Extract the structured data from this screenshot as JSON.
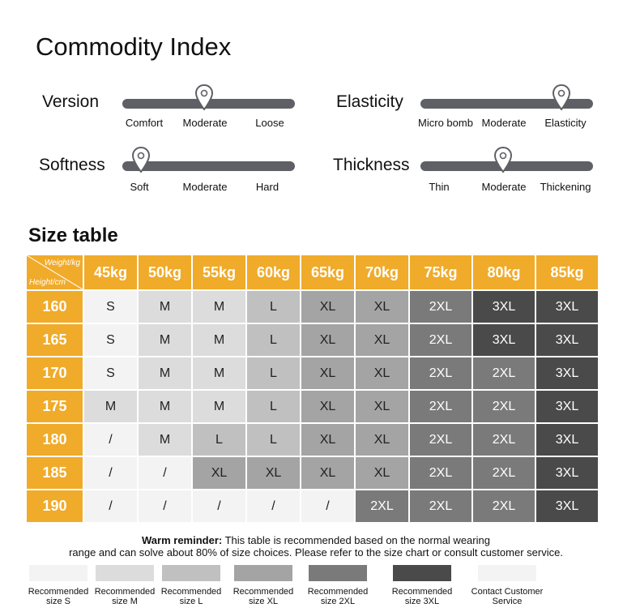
{
  "commodity_index": {
    "title": "Commodity Index",
    "attributes": [
      {
        "label": "Version",
        "options": [
          "Comfort",
          "Moderate",
          "Loose"
        ],
        "selected": "Moderate"
      },
      {
        "label": "Elasticity",
        "options": [
          "Micro bomb",
          "Moderate",
          "Elasticity"
        ],
        "selected": "Elasticity"
      },
      {
        "label": "Softness",
        "options": [
          "Soft",
          "Moderate",
          "Hard"
        ],
        "selected": "Soft"
      },
      {
        "label": "Thickness",
        "options": [
          "Thin",
          "Moderate",
          "Thickening"
        ],
        "selected": "Moderate"
      }
    ],
    "marker_icon": "location-pin-icon"
  },
  "size_table": {
    "title": "Size table",
    "corner": {
      "weight_label": "Weight/kg",
      "height_label": "Height/cm"
    },
    "weights": [
      "45kg",
      "50kg",
      "55kg",
      "60kg",
      "65kg",
      "70kg",
      "75kg",
      "80kg",
      "85kg"
    ],
    "rows": [
      {
        "height": "160",
        "cells": [
          "S",
          "M",
          "M",
          "L",
          "XL",
          "XL",
          "2XL",
          "3XL",
          "3XL"
        ]
      },
      {
        "height": "165",
        "cells": [
          "S",
          "M",
          "M",
          "L",
          "XL",
          "XL",
          "2XL",
          "3XL",
          "3XL"
        ]
      },
      {
        "height": "170",
        "cells": [
          "S",
          "M",
          "M",
          "L",
          "XL",
          "XL",
          "2XL",
          "2XL",
          "3XL"
        ]
      },
      {
        "height": "175",
        "cells": [
          "M",
          "M",
          "M",
          "L",
          "XL",
          "XL",
          "2XL",
          "2XL",
          "3XL"
        ]
      },
      {
        "height": "180",
        "cells": [
          "/",
          "M",
          "L",
          "L",
          "XL",
          "XL",
          "2XL",
          "2XL",
          "3XL"
        ]
      },
      {
        "height": "185",
        "cells": [
          "/",
          "/",
          "XL",
          "XL",
          "XL",
          "XL",
          "2XL",
          "2XL",
          "3XL"
        ]
      },
      {
        "height": "190",
        "cells": [
          "/",
          "/",
          "/",
          "/",
          "/",
          "2XL",
          "2XL",
          "2XL",
          "3XL"
        ]
      }
    ]
  },
  "reminder": {
    "bold": "Warm reminder:",
    "line1": " This table is recommended based on the normal wearing",
    "line2": "range and can solve about 80% of size choices. Please refer to the size chart or consult customer service."
  },
  "legend": [
    {
      "key": "S",
      "line1": "Recommended",
      "line2": "size S",
      "color": "#f3f3f3"
    },
    {
      "key": "M",
      "line1": "Recommended",
      "line2": "size M",
      "color": "#dcdcdc"
    },
    {
      "key": "L",
      "line1": "Recommended",
      "line2": "size L",
      "color": "#c0c0c0"
    },
    {
      "key": "XL",
      "line1": "Recommended",
      "line2": "size XL",
      "color": "#a4a4a4"
    },
    {
      "key": "2XL",
      "line1": "Recommended",
      "line2": "size 2XL",
      "color": "#7a7a7a"
    },
    {
      "key": "3XL",
      "line1": "Recommended",
      "line2": "size 3XL",
      "color": "#4a4a4a"
    },
    {
      "key": "/",
      "line1": "Contact Customer",
      "line2": "Service",
      "color": "#f3f3f3"
    }
  ],
  "colors": {
    "orange": "#f0ab2a",
    "track": "#5f5f66",
    "cell_S": "#f3f3f3",
    "cell_M": "#dcdcdc",
    "cell_L": "#c0c0c0",
    "cell_XL": "#a4a4a4",
    "cell_2XL": "#7a7a7a",
    "cell_3XL": "#4a4a4a",
    "cell_contact": "#f3f3f3"
  }
}
